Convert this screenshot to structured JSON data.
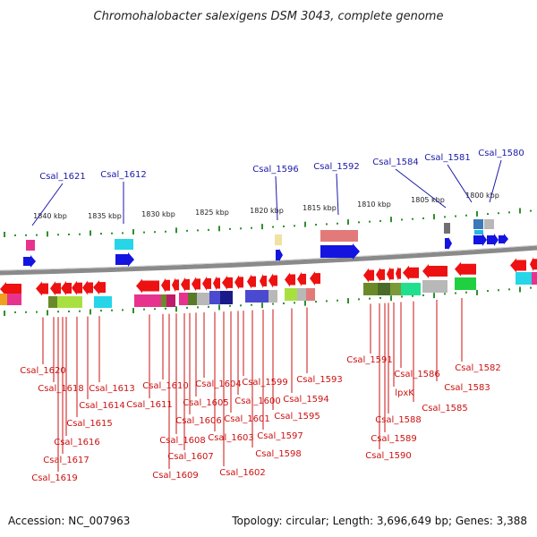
{
  "title": "Chromohalobacter salexigens DSM 3043, complete genome",
  "footer": {
    "accession": "Accession: NC_007963",
    "summary": "Topology: circular; Length: 3,696,649 bp; Genes: 3,388"
  },
  "colors": {
    "backbone": "#8a8a8a",
    "tick": "#2f8f2f",
    "forward_gene": "#1414e0",
    "reverse_gene": "#ee1111",
    "top_label": "#1a1aa8",
    "bottom_label": "#cc1111"
  },
  "scale_ticks": [
    "1840 kbp",
    "1835 kbp",
    "1830 kbp",
    "1825 kbp",
    "1820 kbp",
    "1815 kbp",
    "1810 kbp",
    "1805 kbp",
    "1800 kbp"
  ],
  "top_labels": [
    "Csal_1621",
    "Csal_1612",
    "Csal_1596",
    "Csal_1592",
    "Csal_1584",
    "Csal_1581",
    "Csal_1580"
  ],
  "bottom_labels": [
    "Csal_1620",
    "Csal_1618",
    "Csal_1619",
    "Csal_1617",
    "Csal_1616",
    "Csal_1615",
    "Csal_1614",
    "Csal_1613",
    "Csal_1611",
    "Csal_1610",
    "Csal_1609",
    "Csal_1608",
    "Csal_1607",
    "Csal_1606",
    "Csal_1605",
    "Csal_1604",
    "Csal_1603",
    "Csal_1602",
    "Csal_1601",
    "Csal_1600",
    "Csal_1599",
    "Csal_1598",
    "Csal_1597",
    "Csal_1595",
    "Csal_1594",
    "Csal_1593",
    "Csal_1591",
    "Csal_1590",
    "Csal_1589",
    "Csal_1588",
    "lpxK",
    "Csal_1586",
    "Csal_1585",
    "Csal_1583",
    "Csal_1582"
  ]
}
